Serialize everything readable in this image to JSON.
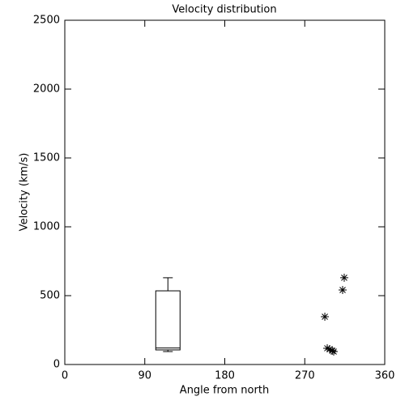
{
  "chart_data": [
    {
      "type": "box",
      "title": "Velocity distribution",
      "xlabel": "Angle from north",
      "ylabel": "Velocity (km/s)",
      "xlim": [
        0,
        360
      ],
      "xticks": [
        0,
        90,
        180,
        270,
        360
      ],
      "ylim": [
        0,
        2500
      ],
      "yticks": [
        0,
        500,
        1000,
        1500,
        2000,
        2500
      ],
      "color": "#000000",
      "boxes": [
        {
          "x": 116,
          "min": 94,
          "q1": 106,
          "median": 120,
          "q3": 535,
          "max": 630
        }
      ]
    },
    {
      "type": "scatter",
      "marker": "asterisk",
      "color": "#000000",
      "x": [
        292.6,
        295.3,
        298,
        301,
        302.6,
        312.6,
        314.4
      ],
      "values": [
        347,
        118,
        112,
        100,
        94,
        541,
        630
      ]
    }
  ]
}
